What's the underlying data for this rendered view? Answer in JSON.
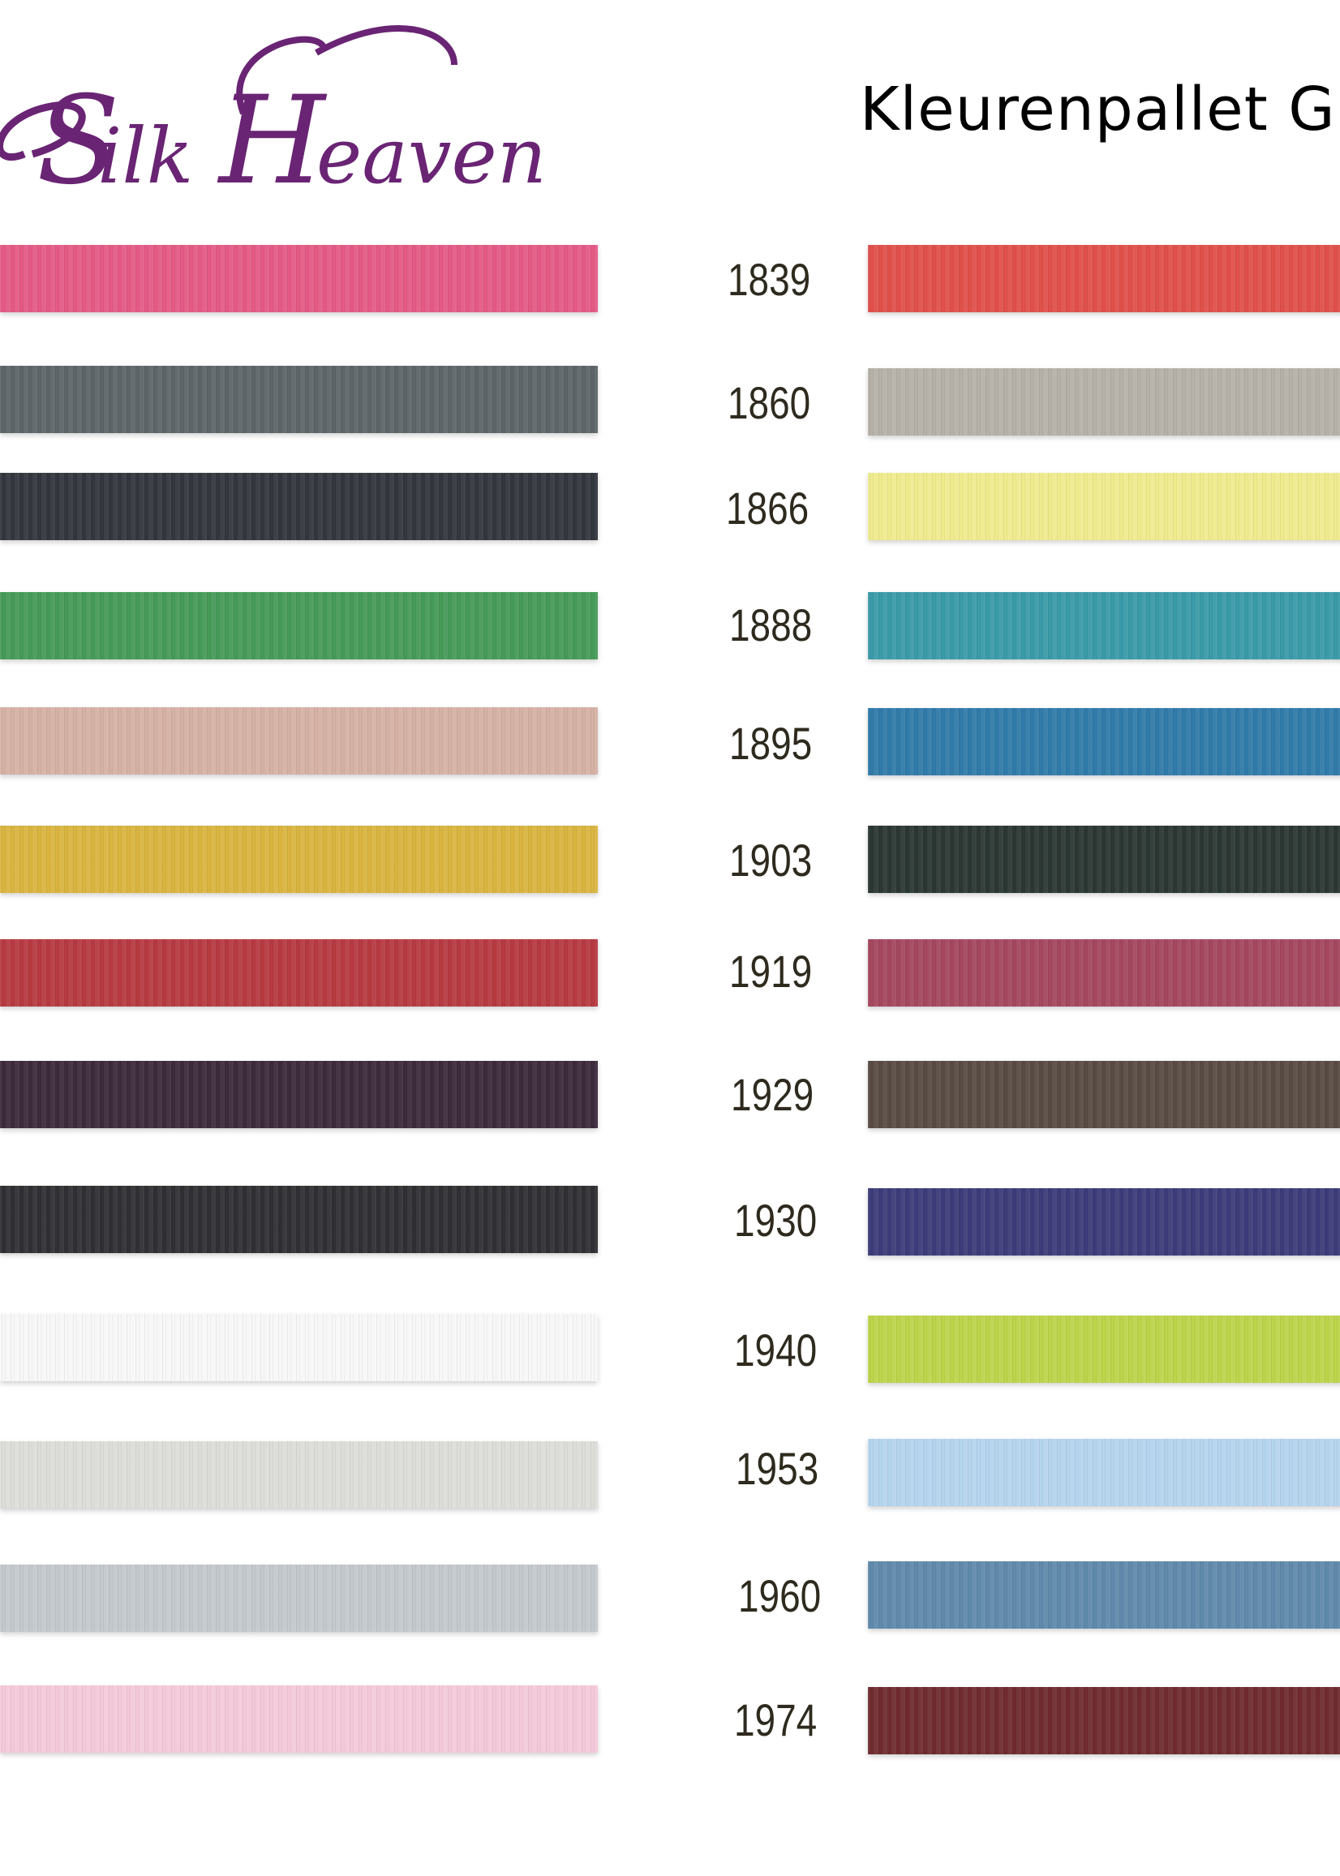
{
  "logo": {
    "text": "Silk Heaven",
    "color": "#6a2474"
  },
  "title": "Kleurenpallet G",
  "left_swatches": [
    {
      "color": "#e35a85"
    },
    {
      "color": "#5e6569"
    },
    {
      "color": "#33363d"
    },
    {
      "color": "#469a58"
    },
    {
      "color": "#d5b1a4"
    },
    {
      "color": "#d9b43f"
    },
    {
      "color": "#b63a41"
    },
    {
      "color": "#3c2b3b"
    },
    {
      "color": "#303034"
    },
    {
      "color": "#f7f7f7"
    },
    {
      "color": "#dcdcd8"
    },
    {
      "color": "#c3c8cc"
    },
    {
      "color": "#f3c9da"
    }
  ],
  "right_swatches": [
    {
      "code": "1839",
      "color": "#e0504a"
    },
    {
      "code": "1860",
      "color": "#b5b0a8"
    },
    {
      "code": "1866",
      "color": "#eeeb8e"
    },
    {
      "code": "1888",
      "color": "#3a9aa8"
    },
    {
      "code": "1895",
      "color": "#307ba9"
    },
    {
      "code": "1903",
      "color": "#2b3733"
    },
    {
      "code": "1919",
      "color": "#a4475f"
    },
    {
      "code": "1929",
      "color": "#584b43"
    },
    {
      "code": "1930",
      "color": "#3d3b79"
    },
    {
      "code": "1940",
      "color": "#bcd44b"
    },
    {
      "code": "1953",
      "color": "#b5d4ee"
    },
    {
      "code": "1960",
      "color": "#6089ab"
    },
    {
      "code": "1974",
      "color": "#6f2b2f"
    }
  ]
}
